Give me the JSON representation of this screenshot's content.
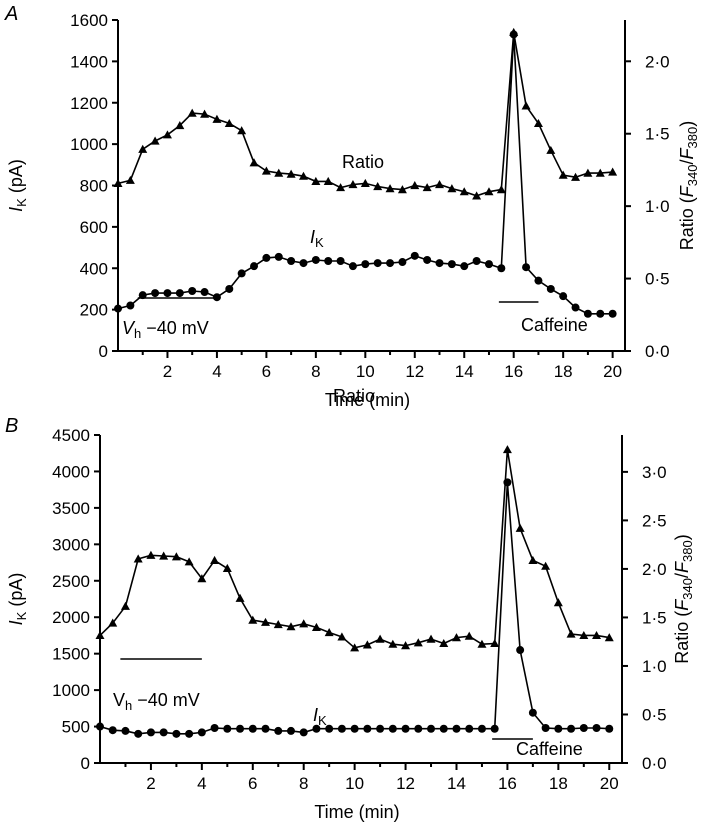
{
  "chart_data": [
    {
      "type": "line",
      "panel": "A",
      "xlabel": "Time (min)",
      "ylabel_left": "I_K (pA)",
      "ylabel_right": "Ratio (F340/F380)",
      "x_ticks": [
        "2",
        "4",
        "6",
        "8",
        "10",
        "12",
        "14",
        "16",
        "18",
        "20"
      ],
      "xlim": [
        0,
        20.5
      ],
      "y_left_lim": [
        0,
        1600
      ],
      "y_left_ticks": [
        "0",
        "200",
        "400",
        "600",
        "800",
        "1000",
        "1200",
        "1400",
        "1600"
      ],
      "y_right_lim": [
        0,
        2.285
      ],
      "y_right_ticks": [
        "0·0",
        "0·5",
        "1·0",
        "1·5",
        "2·0"
      ],
      "annotations": {
        "ratio": "Ratio",
        "ik": "I",
        "ik_sub": "K",
        "vh": "V",
        "vh_sub": "h",
        "vh_value": " −40 mV",
        "caffeine": "Caffeine"
      },
      "bars": {
        "vh": [
          0.8,
          4.0
        ],
        "caffeine": [
          15.4,
          17.0
        ]
      },
      "series": [
        {
          "name": "Ratio",
          "marker": "triangle",
          "axis": "left",
          "x": [
            0,
            0.5,
            1,
            1.5,
            2,
            2.5,
            3,
            3.5,
            4,
            4.5,
            5,
            5.5,
            6,
            6.5,
            7,
            7.5,
            8,
            8.5,
            9,
            9.5,
            10,
            10.5,
            11,
            11.5,
            12,
            12.5,
            13,
            13.5,
            14,
            14.5,
            15,
            15.5,
            16,
            16.5,
            17,
            17.5,
            18,
            18.5,
            19,
            19.5,
            20
          ],
          "y": [
            810,
            825,
            975,
            1015,
            1045,
            1090,
            1150,
            1145,
            1120,
            1100,
            1065,
            910,
            870,
            860,
            855,
            845,
            820,
            820,
            790,
            805,
            810,
            795,
            785,
            780,
            800,
            790,
            805,
            785,
            770,
            750,
            770,
            780,
            1540,
            1185,
            1100,
            970,
            850,
            840,
            860,
            860,
            865
          ]
        },
        {
          "name": "I_K",
          "marker": "circle",
          "axis": "left",
          "x": [
            0,
            0.5,
            1,
            1.5,
            2,
            2.5,
            3,
            3.5,
            4,
            4.5,
            5,
            5.5,
            6,
            6.5,
            7,
            7.5,
            8,
            8.5,
            9,
            9.5,
            10,
            10.5,
            11,
            11.5,
            12,
            12.5,
            13,
            13.5,
            14,
            14.5,
            15,
            15.5,
            16,
            16.5,
            17,
            17.5,
            18,
            18.5,
            19,
            19.5,
            20
          ],
          "y": [
            205,
            220,
            270,
            280,
            280,
            280,
            290,
            285,
            260,
            300,
            375,
            410,
            450,
            455,
            435,
            425,
            440,
            435,
            435,
            410,
            420,
            425,
            425,
            430,
            460,
            440,
            425,
            420,
            410,
            435,
            420,
            400,
            1530,
            405,
            340,
            300,
            265,
            210,
            180,
            180,
            180
          ]
        }
      ]
    },
    {
      "type": "line",
      "panel": "B",
      "xlabel": "Time (min)",
      "ylabel_left": "I_K (pA)",
      "ylabel_right": "Ratio (F340/F380)",
      "x_ticks": [
        "2",
        "4",
        "6",
        "8",
        "10",
        "12",
        "14",
        "16",
        "18",
        "20"
      ],
      "xlim": [
        0,
        20.5
      ],
      "y_left_lim": [
        0,
        4500
      ],
      "y_left_ticks": [
        "0",
        "500",
        "1000",
        "1500",
        "2000",
        "2500",
        "3000",
        "3500",
        "4000",
        "4500"
      ],
      "y_right_lim": [
        0,
        3.38
      ],
      "y_right_ticks": [
        "0·0",
        "0·5",
        "1·0",
        "1·5",
        "2·0",
        "2·5",
        "3·0"
      ],
      "annotations": {
        "ratio": "Ratio",
        "ik": "I",
        "ik_sub": "K",
        "vh": "V",
        "vh_sub": "h",
        "vh_value": " −40 mV",
        "caffeine": "Caffeine"
      },
      "bars": {
        "vh": [
          0.8,
          4.0
        ],
        "caffeine": [
          15.4,
          17.0
        ]
      },
      "series": [
        {
          "name": "Ratio",
          "marker": "triangle",
          "axis": "left",
          "x": [
            0,
            0.5,
            1,
            1.5,
            2,
            2.5,
            3,
            3.5,
            4,
            4.5,
            5,
            5.5,
            6,
            6.5,
            7,
            7.5,
            8,
            8.5,
            9,
            9.5,
            10,
            10.5,
            11,
            11.5,
            12,
            12.5,
            13,
            13.5,
            14,
            14.5,
            15,
            15.5,
            16,
            16.5,
            17,
            17.5,
            18,
            18.5,
            19,
            19.5,
            20
          ],
          "y": [
            1750,
            1920,
            2150,
            2800,
            2850,
            2840,
            2830,
            2760,
            2530,
            2780,
            2670,
            2260,
            1960,
            1930,
            1900,
            1870,
            1910,
            1860,
            1790,
            1730,
            1580,
            1620,
            1700,
            1630,
            1610,
            1650,
            1700,
            1640,
            1720,
            1740,
            1630,
            1640,
            4300,
            3220,
            2780,
            2700,
            2200,
            1770,
            1750,
            1750,
            1720
          ]
        },
        {
          "name": "I_K",
          "marker": "circle",
          "axis": "left",
          "x": [
            0,
            0.5,
            1,
            1.5,
            2,
            2.5,
            3,
            3.5,
            4,
            4.5,
            5,
            5.5,
            6,
            6.5,
            7,
            7.5,
            8,
            8.5,
            9,
            9.5,
            10,
            10.5,
            11,
            11.5,
            12,
            12.5,
            13,
            13.5,
            14,
            14.5,
            15,
            15.5,
            16,
            16.5,
            17,
            17.5,
            18,
            18.5,
            19,
            19.5,
            20
          ],
          "y": [
            500,
            450,
            440,
            400,
            420,
            420,
            400,
            400,
            420,
            480,
            470,
            470,
            470,
            470,
            440,
            440,
            420,
            470,
            470,
            470,
            470,
            470,
            470,
            470,
            470,
            470,
            470,
            470,
            470,
            470,
            470,
            470,
            3850,
            1550,
            690,
            480,
            470,
            470,
            480,
            480,
            470
          ]
        }
      ]
    }
  ]
}
